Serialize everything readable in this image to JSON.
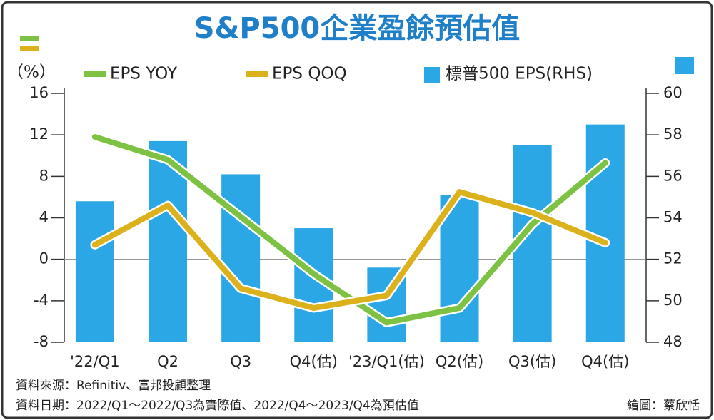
{
  "chart_data": {
    "type": "bar-line",
    "title": "S&P500企業盈餘預估值",
    "y_unit_label": "（%）",
    "categories": [
      "'22/Q1",
      "Q2",
      "Q3",
      "Q4(估)",
      "'23/Q1(估)",
      "Q2(估)",
      "Q3(估)",
      "Q4(估)"
    ],
    "series": [
      {
        "name": "EPS YOY",
        "type": "line",
        "color": "#7dc242",
        "values": [
          11.8,
          9.6,
          4.1,
          -1.4,
          -6.1,
          -4.7,
          3.4,
          9.3
        ]
      },
      {
        "name": "EPS QOQ",
        "type": "line",
        "color": "#dcb21c",
        "values": [
          1.4,
          5.2,
          -2.8,
          -4.7,
          -3.5,
          6.5,
          4.5,
          1.6
        ]
      },
      {
        "name": "標普500 EPS(RHS)",
        "type": "bar",
        "axis": "y2",
        "color": "#2aa7e4",
        "values": [
          54.8,
          57.7,
          56.1,
          53.5,
          51.6,
          55.1,
          57.5,
          58.5
        ]
      }
    ],
    "ylim": [
      -8,
      16
    ],
    "yticks": [
      16,
      12,
      8,
      4,
      0,
      -4,
      -8
    ],
    "y2lim": [
      48,
      60
    ],
    "y2ticks": [
      60,
      58,
      56,
      54,
      52,
      50,
      48
    ],
    "source": "資料來源：Refinitiv、富邦投顧整理",
    "date_note": "資料日期：2022/Q1～2022/Q3為實際值、2022/Q4～2023/Q4為預估值",
    "credit": "繪圖：蔡欣恬"
  }
}
